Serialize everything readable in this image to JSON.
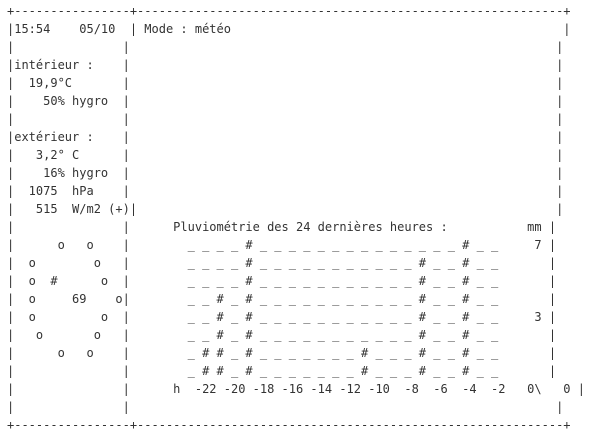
{
  "title": "Mode : météo",
  "lines": [
    "+----------------+-----------------------------------------------------------+",
    "|15:54    05/10  | Mode : météo                                              |",
    "|               |                                                           |",
    "|intérieur :    |                                                           |",
    "|  19,9°C       |                                                           |",
    "|    50% hygro  |                                                           |",
    "|               |                                                           |",
    "|extérieur :    |                                                           |",
    "|   3,2° C      |                                                           |",
    "|    16% hygro  |                                                           |",
    "|  1075  hPa    |                                                           |",
    "|   515  W/m2 (+)|                                                          |",
    "|               |      Pluviométrie des 24 dernières heures :           mm |",
    "|      o   o    |        _ _ _ _ # _ _ _ _ _ _ _ _ _ _ _ _ _ _ # _ _     7 |",
    "|  o        o   |        _ _ _ _ # _ _ _ _ _ _ _ _ _ _ _ # _ _ # _ _       |",
    "|  o  #      o  |        _ _ _ _ # _ _ _ _ _ _ _ _ _ _ _ # _ _ # _ _       |",
    "|  o     69    o|        _ _ # _ # _ _ _ _ _ _ _ _ _ _ _ # _ _ # _ _       |",
    "|  o         o  |        _ _ # _ # _ _ _ _ _ _ _ _ _ _ _ # _ _ # _ _     3 |",
    "|   o       o   |        _ _ # _ # _ _ _ _ _ _ _ _ _ _ _ # _ _ # _ _       |",
    "|      o   o    |        _ # # _ # _ _ _ _ _ _ _ # _ _ _ # _ _ # _ _       |",
    "|               |        _ # # _ # _ _ _ _ _ _ _ # _ _ _ # _ _ # _ _       |",
    "|               |      h  -22 -20 -18 -16 -14 -12 -10  -8  -6  -4  -2   0\\   0 |",
    "|               |                                                           |",
    "+----------------+-----------------------------------------------------------+"
  ]
}
